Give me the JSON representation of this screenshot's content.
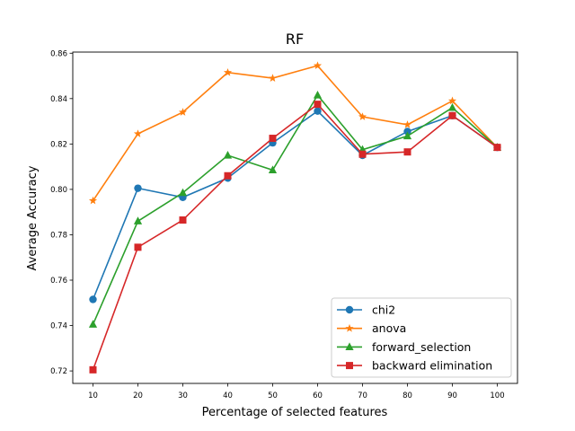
{
  "chart_data": {
    "type": "line",
    "title": "RF",
    "xlabel": "Percentage of selected features",
    "ylabel": "Average Accuracy",
    "x": [
      10,
      20,
      30,
      40,
      50,
      60,
      70,
      80,
      90,
      100
    ],
    "x_ticks": [
      "10",
      "20",
      "30",
      "40",
      "50",
      "60",
      "70",
      "80",
      "90",
      "100"
    ],
    "y_ticks": [
      "0.72",
      "0.74",
      "0.76",
      "0.78",
      "0.80",
      "0.82",
      "0.84",
      "0.86"
    ],
    "xlim": [
      5.5,
      104.5
    ],
    "ylim": [
      0.7145,
      0.8605
    ],
    "grid": false,
    "legend_position": "lower-right",
    "series": [
      {
        "name": "chi2",
        "color": "#1f77b4",
        "marker": "circle",
        "values": [
          0.7515,
          0.8005,
          0.7965,
          0.805,
          0.8205,
          0.8345,
          0.815,
          0.8255,
          0.8325,
          0.8185
        ]
      },
      {
        "name": "anova",
        "color": "#ff7f0e",
        "marker": "star",
        "values": [
          0.795,
          0.8245,
          0.834,
          0.8515,
          0.849,
          0.8545,
          0.832,
          0.8285,
          0.839,
          0.8185
        ]
      },
      {
        "name": "forward_selection",
        "color": "#2ca02c",
        "marker": "triangle",
        "values": [
          0.7405,
          0.786,
          0.7985,
          0.815,
          0.8085,
          0.8415,
          0.8175,
          0.8235,
          0.836,
          0.8185
        ]
      },
      {
        "name": "backward elimination",
        "color": "#d62728",
        "marker": "square",
        "values": [
          0.7205,
          0.7745,
          0.7865,
          0.806,
          0.8225,
          0.8375,
          0.8155,
          0.8165,
          0.8325,
          0.8185
        ]
      }
    ]
  }
}
